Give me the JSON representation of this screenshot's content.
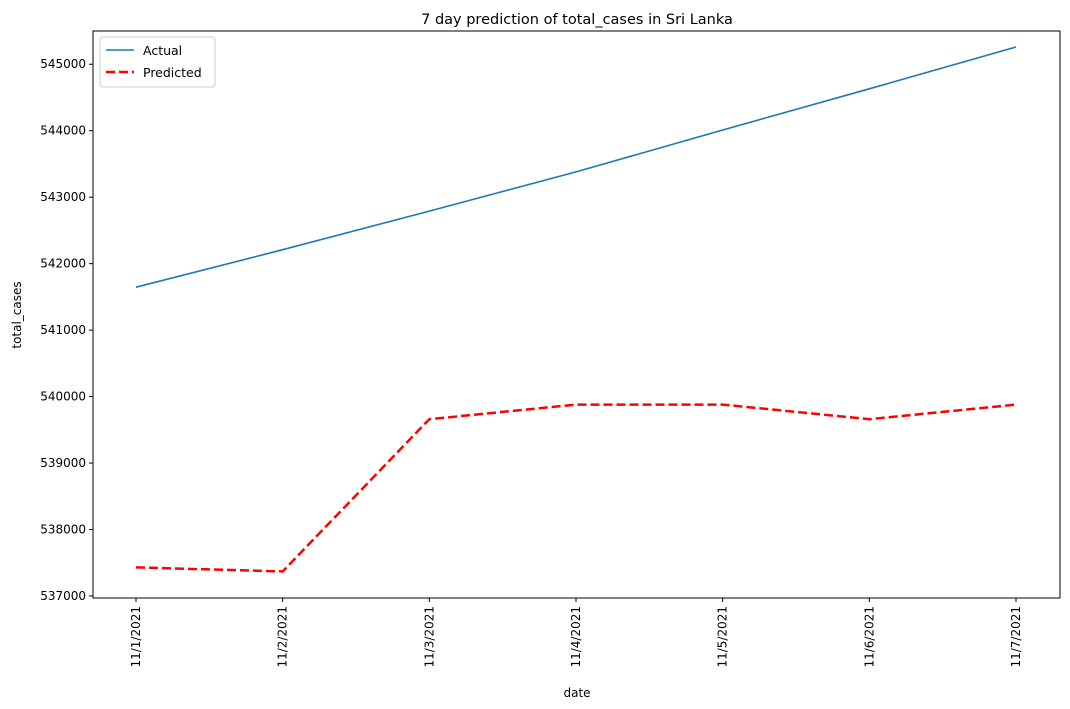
{
  "chart_data": {
    "type": "line",
    "title": "7 day prediction of total_cases in Sri Lanka",
    "xlabel": "date",
    "ylabel": "total_cases",
    "x": [
      "11/1/2021",
      "11/2/2021",
      "11/3/2021",
      "11/4/2021",
      "11/5/2021",
      "11/6/2021",
      "11/7/2021"
    ],
    "yticks": [
      537000,
      538000,
      539000,
      540000,
      541000,
      542000,
      543000,
      544000,
      545000
    ],
    "ylim": [
      536970,
      545500
    ],
    "grid": false,
    "legend_position": "top-left",
    "series": [
      {
        "name": "Actual",
        "color": "#1f77b4",
        "style": "solid",
        "values": [
          541645,
          542210,
          542790,
          543380,
          544010,
          544630,
          545260
        ]
      },
      {
        "name": "Predicted",
        "color": "#ff0000",
        "style": "dashed",
        "values": [
          537430,
          537370,
          539660,
          539880,
          539880,
          539660,
          539880
        ]
      }
    ]
  }
}
